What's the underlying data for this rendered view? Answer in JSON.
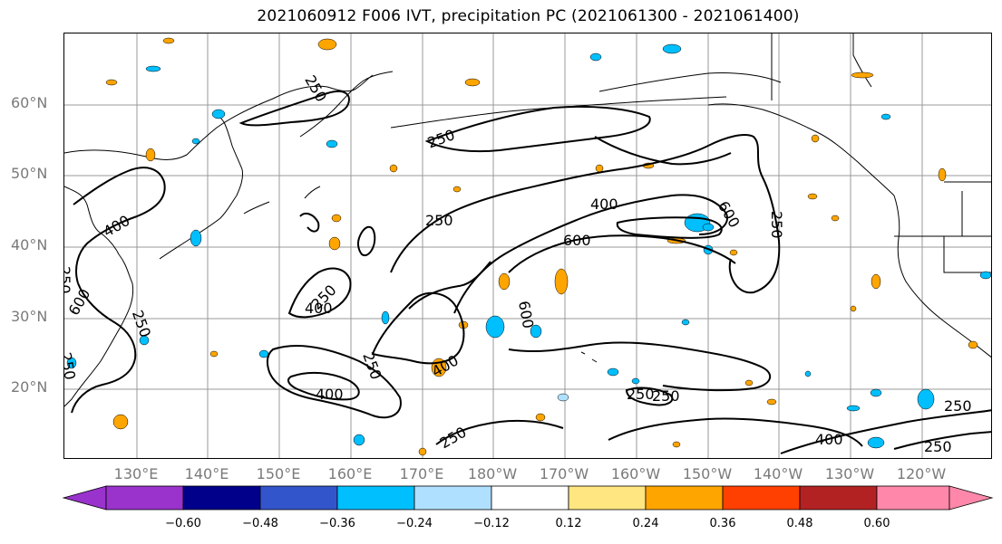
{
  "title": "2021060912 F006 IVT, precipitation PC (2021061300 - 2021061400)",
  "map": {
    "latitude_labels": [
      "60°N",
      "50°N",
      "40°N",
      "30°N",
      "20°N"
    ],
    "longitude_labels": [
      "130°E",
      "140°E",
      "150°E",
      "160°E",
      "170°E",
      "180°W",
      "170°W",
      "160°W",
      "150°W",
      "140°W",
      "130°W",
      "120°W"
    ],
    "contour_labels": [
      "250",
      "250",
      "250",
      "250",
      "400",
      "400",
      "600",
      "600",
      "250",
      "400",
      "250",
      "400",
      "250",
      "600",
      "250",
      "250",
      "250",
      "250",
      "400",
      "250",
      "400",
      "250",
      "250",
      "600"
    ],
    "label_color": "#7a7a7a",
    "coastline_color": "#000000",
    "gridline_color": "#9a9a9a"
  },
  "colorbar": {
    "ticks": [
      "−0.60",
      "−0.48",
      "−0.36",
      "−0.24",
      "−0.12",
      "0.12",
      "0.24",
      "0.36",
      "0.48",
      "0.60"
    ],
    "colors": [
      "#9933cc",
      "#00008b",
      "#3355cc",
      "#00bfff",
      "#b0e0ff",
      "#ffffff",
      "#ffe680",
      "#ffa500",
      "#ff4000",
      "#b22222",
      "#ff88aa"
    ]
  }
}
